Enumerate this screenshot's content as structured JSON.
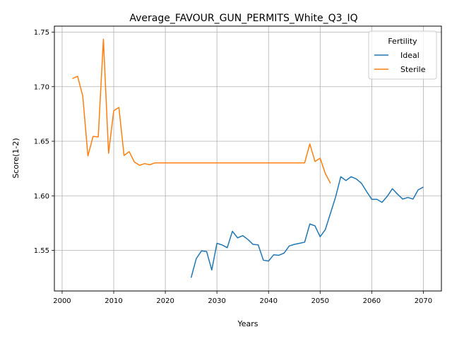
{
  "chart_data": {
    "type": "line",
    "title": "Average_FAVOUR_GUN_PERMITS_White_Q3_IQ",
    "xlabel": "Years",
    "ylabel": "Score(1-2)",
    "xlim": [
      1998.5,
      2073.5
    ],
    "ylim": [
      1.5128,
      1.7555
    ],
    "xticks": [
      2000,
      2010,
      2020,
      2030,
      2040,
      2050,
      2060,
      2070
    ],
    "yticks": [
      1.55,
      1.6,
      1.65,
      1.7,
      1.75
    ],
    "ytick_labels": [
      "1.55",
      "1.60",
      "1.65",
      "1.70",
      "1.75"
    ],
    "grid": true,
    "legend": {
      "title": "Fertility",
      "placement": "top-right"
    },
    "series": [
      {
        "name": "Ideal",
        "color": "#1f77b4",
        "points": [
          [
            2025,
            1.525
          ],
          [
            2026,
            1.5425
          ],
          [
            2027,
            1.5495
          ],
          [
            2028,
            1.549
          ],
          [
            2029,
            1.532
          ],
          [
            2030,
            1.5565
          ],
          [
            2031,
            1.555
          ],
          [
            2032,
            1.5525
          ],
          [
            2033,
            1.5675
          ],
          [
            2034,
            1.5615
          ],
          [
            2035,
            1.5635
          ],
          [
            2036,
            1.56
          ],
          [
            2037,
            1.5555
          ],
          [
            2038,
            1.555
          ],
          [
            2039,
            1.541
          ],
          [
            2040,
            1.5402
          ],
          [
            2041,
            1.546
          ],
          [
            2042,
            1.5455
          ],
          [
            2043,
            1.5475
          ],
          [
            2044,
            1.554
          ],
          [
            2045,
            1.5555
          ],
          [
            2046,
            1.5565
          ],
          [
            2047,
            1.5575
          ],
          [
            2048,
            1.5742
          ],
          [
            2049,
            1.5725
          ],
          [
            2050,
            1.5625
          ],
          [
            2051,
            1.569
          ],
          [
            2052,
            1.584
          ],
          [
            2053,
            1.599
          ],
          [
            2054,
            1.6175
          ],
          [
            2055,
            1.614
          ],
          [
            2056,
            1.6175
          ],
          [
            2057,
            1.6155
          ],
          [
            2058,
            1.6115
          ],
          [
            2059,
            1.604
          ],
          [
            2060,
            1.5968
          ],
          [
            2061,
            1.5968
          ],
          [
            2062,
            1.594
          ],
          [
            2063,
            1.5995
          ],
          [
            2064,
            1.6065
          ],
          [
            2065,
            1.6015
          ],
          [
            2066,
            1.597
          ],
          [
            2067,
            1.5985
          ],
          [
            2068,
            1.597
          ],
          [
            2069,
            1.6055
          ],
          [
            2070,
            1.608
          ]
        ]
      },
      {
        "name": "Sterile",
        "color": "#ff7f0e",
        "points": [
          [
            2002,
            1.7075
          ],
          [
            2003,
            1.7095
          ],
          [
            2004,
            1.6915
          ],
          [
            2005,
            1.6365
          ],
          [
            2006,
            1.6545
          ],
          [
            2007,
            1.654
          ],
          [
            2008,
            1.7435
          ],
          [
            2009,
            1.639
          ],
          [
            2010,
            1.678
          ],
          [
            2011,
            1.681
          ],
          [
            2012,
            1.637
          ],
          [
            2013,
            1.6405
          ],
          [
            2014,
            1.631
          ],
          [
            2015,
            1.628
          ],
          [
            2016,
            1.6295
          ],
          [
            2017,
            1.6285
          ],
          [
            2018,
            1.6302
          ],
          [
            2019,
            1.6302
          ],
          [
            2020,
            1.6302
          ],
          [
            2021,
            1.6302
          ],
          [
            2022,
            1.6302
          ],
          [
            2023,
            1.6302
          ],
          [
            2024,
            1.6302
          ],
          [
            2025,
            1.6302
          ],
          [
            2026,
            1.6302
          ],
          [
            2027,
            1.6302
          ],
          [
            2028,
            1.6302
          ],
          [
            2029,
            1.6302
          ],
          [
            2030,
            1.6302
          ],
          [
            2031,
            1.6302
          ],
          [
            2032,
            1.6302
          ],
          [
            2033,
            1.6302
          ],
          [
            2034,
            1.6302
          ],
          [
            2035,
            1.6302
          ],
          [
            2036,
            1.6302
          ],
          [
            2037,
            1.6302
          ],
          [
            2038,
            1.6302
          ],
          [
            2039,
            1.6302
          ],
          [
            2040,
            1.6302
          ],
          [
            2041,
            1.6302
          ],
          [
            2042,
            1.6302
          ],
          [
            2043,
            1.6302
          ],
          [
            2044,
            1.6302
          ],
          [
            2045,
            1.6302
          ],
          [
            2046,
            1.6302
          ],
          [
            2047,
            1.6302
          ],
          [
            2048,
            1.6475
          ],
          [
            2049,
            1.6315
          ],
          [
            2050,
            1.6345
          ],
          [
            2051,
            1.6205
          ],
          [
            2052,
            1.6115
          ]
        ]
      }
    ]
  }
}
